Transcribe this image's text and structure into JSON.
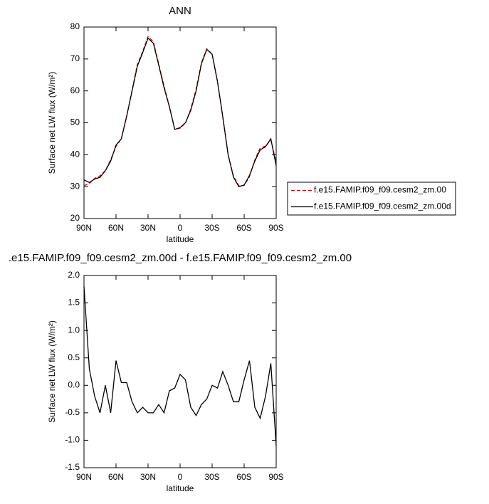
{
  "chart_data": [
    {
      "type": "line",
      "title": "ANN",
      "xlabel": "latitude",
      "ylabel": "Surface net LW flux (W/m²)",
      "x": [
        90,
        85,
        80,
        75,
        70,
        65,
        60,
        55,
        50,
        45,
        40,
        35,
        30,
        25,
        20,
        15,
        10,
        5,
        0,
        -5,
        -10,
        -15,
        -20,
        -25,
        -30,
        -35,
        -40,
        -45,
        -50,
        -55,
        -60,
        -65,
        -70,
        -75,
        -80,
        -85,
        -90
      ],
      "series": [
        {
          "name": "f.e15.FAMIP.f09_f09.cesm2_zm.00",
          "color": "#dd0000",
          "line_style": "dashed",
          "values": [
            30.3,
            31.0,
            32.6,
            33.4,
            35.0,
            38.5,
            42.6,
            45.0,
            52.1,
            60.2,
            68.3,
            72.4,
            77.0,
            75.4,
            68.4,
            61.5,
            55.1,
            48.0,
            48.3,
            49.9,
            54.3,
            60.5,
            68.8,
            73.2,
            71.5,
            63.0,
            51.7,
            40.0,
            33.3,
            30.3,
            30.4,
            33.1,
            38.4,
            42.1,
            42.7,
            44.6,
            37.6
          ]
        },
        {
          "name": "f.e15.FAMIP.f09_f09.cesm2_zm.00d",
          "color": "#000000",
          "line_style": "solid",
          "values": [
            32.1,
            31.3,
            32.4,
            32.9,
            35.0,
            38.0,
            43.0,
            45.0,
            52.1,
            59.9,
            67.8,
            72.0,
            76.5,
            74.9,
            68.1,
            61.0,
            55.0,
            47.9,
            48.5,
            50.0,
            53.9,
            60.0,
            68.5,
            73.0,
            71.5,
            63.0,
            51.9,
            40.0,
            33.0,
            30.0,
            30.5,
            33.5,
            38.0,
            41.5,
            42.5,
            45.0,
            36.5
          ]
        }
      ],
      "xlim": [
        90,
        -90
      ],
      "xticks": [
        {
          "value": 90,
          "label": "90N"
        },
        {
          "value": 60,
          "label": "60N"
        },
        {
          "value": 30,
          "label": "30N"
        },
        0,
        {
          "value": -30,
          "label": "30S"
        },
        {
          "value": -60,
          "label": "60S"
        },
        {
          "value": -90,
          "label": "90S"
        }
      ],
      "ylim": [
        20,
        80
      ],
      "yticks": [
        20,
        30,
        40,
        50,
        60,
        70,
        80
      ],
      "legend": "right"
    },
    {
      "type": "line",
      "title": ".e15.FAMIP.f09_f09.cesm2_zm.00d - f.e15.FAMIP.f09_f09.cesm2_zm.00",
      "xlabel": "latitude",
      "ylabel": "Surface net LW flux (W/m²)",
      "x": [
        90,
        85,
        80,
        75,
        70,
        65,
        60,
        55,
        50,
        45,
        40,
        35,
        30,
        25,
        20,
        15,
        10,
        5,
        0,
        -5,
        -10,
        -15,
        -20,
        -25,
        -30,
        -35,
        -40,
        -45,
        -50,
        -55,
        -60,
        -65,
        -70,
        -75,
        -80,
        -85,
        -90
      ],
      "series": [
        {
          "color": "#000000",
          "line_style": "solid",
          "values": [
            1.8,
            0.3,
            -0.2,
            -0.5,
            0.0,
            -0.5,
            0.45,
            0.05,
            0.05,
            -0.3,
            -0.5,
            -0.4,
            -0.5,
            -0.5,
            -0.35,
            -0.5,
            -0.1,
            -0.05,
            0.2,
            0.1,
            -0.4,
            -0.55,
            -0.35,
            -0.25,
            0.0,
            -0.05,
            0.25,
            0.0,
            -0.3,
            -0.3,
            0.1,
            0.45,
            -0.4,
            -0.6,
            -0.2,
            0.4,
            -1.1
          ]
        }
      ],
      "xlim": [
        90,
        -90
      ],
      "xticks": [
        {
          "value": 90,
          "label": "90N"
        },
        {
          "value": 60,
          "label": "60N"
        },
        {
          "value": 30,
          "label": "30N"
        },
        0,
        {
          "value": -30,
          "label": "30S"
        },
        {
          "value": -60,
          "label": "60S"
        },
        {
          "value": -90,
          "label": "90S"
        }
      ],
      "ylim": [
        -1.5,
        2.0
      ],
      "yticks": [
        -1.5,
        {
          "value": -1.0,
          "label": "-1.0"
        },
        -0.5,
        {
          "value": 0,
          "label": "0.0"
        },
        0.5,
        {
          "value": 1.0,
          "label": "1.0"
        },
        1.5,
        {
          "value": 2.0,
          "label": "2.0"
        }
      ]
    }
  ]
}
